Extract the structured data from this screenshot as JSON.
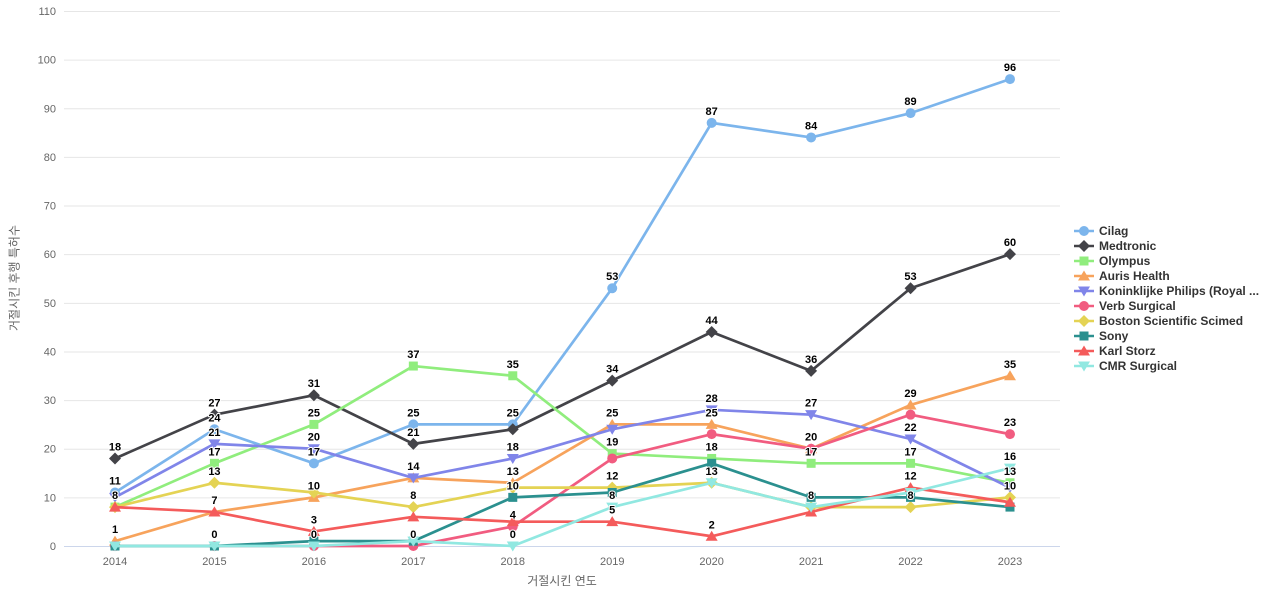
{
  "chart_data": {
    "type": "line",
    "xlabel": "거절시킨 연도",
    "ylabel": "거절시킨 후행 특허수",
    "categories": [
      "2014",
      "2015",
      "2016",
      "2017",
      "2018",
      "2019",
      "2020",
      "2021",
      "2022",
      "2023"
    ],
    "yticks": [
      0,
      10,
      20,
      30,
      40,
      50,
      60,
      70,
      80,
      90,
      100,
      110
    ],
    "ylim": [
      0,
      110
    ],
    "grid": true,
    "legend_position": "right",
    "grid_color": "#e6e6e6",
    "baseline_color": "#ccd6eb",
    "series": [
      {
        "name": "Cilag",
        "color": "#7cb5ec",
        "marker": "circle",
        "values": [
          11,
          24,
          17,
          25,
          25,
          53,
          87,
          84,
          89,
          96
        ],
        "labels": [
          11,
          24,
          17,
          25,
          25,
          53,
          87,
          84,
          89,
          96
        ]
      },
      {
        "name": "Medtronic",
        "color": "#434348",
        "marker": "diamond",
        "values": [
          18,
          27,
          31,
          21,
          24,
          34,
          44,
          36,
          53,
          60
        ],
        "labels": [
          18,
          27,
          31,
          21,
          null,
          34,
          44,
          36,
          53,
          60
        ]
      },
      {
        "name": "Olympus",
        "color": "#90ed7d",
        "marker": "square",
        "values": [
          8,
          17,
          25,
          37,
          35,
          19,
          18,
          17,
          17,
          13
        ],
        "labels": [
          8,
          17,
          25,
          37,
          35,
          19,
          18,
          17,
          17,
          13
        ]
      },
      {
        "name": "Auris Health",
        "color": "#f7a35c",
        "marker": "triangle",
        "values": [
          1,
          7,
          10,
          14,
          13,
          25,
          25,
          20,
          29,
          35
        ],
        "labels": [
          1,
          null,
          10,
          null,
          13,
          25,
          25,
          null,
          29,
          35
        ]
      },
      {
        "name": "Koninklijke Philips (Royal ...",
        "color": "#8085e9",
        "marker": "triangle-down",
        "values": [
          10,
          21,
          20,
          14,
          18,
          24,
          28,
          27,
          22,
          12
        ],
        "labels": [
          null,
          21,
          20,
          14,
          18,
          null,
          28,
          27,
          22,
          null
        ]
      },
      {
        "name": "Verb Surgical",
        "color": "#f15c80",
        "marker": "circle",
        "values": [
          0,
          0,
          0,
          0,
          4,
          18,
          23,
          20,
          27,
          23
        ],
        "labels": [
          null,
          null,
          0,
          0,
          4,
          null,
          null,
          20,
          null,
          23
        ]
      },
      {
        "name": "Boston Scientific Scimed",
        "color": "#e4d354",
        "marker": "diamond",
        "values": [
          8,
          13,
          11,
          8,
          12,
          12,
          13,
          8,
          8,
          10
        ],
        "labels": [
          null,
          13,
          null,
          8,
          null,
          12,
          null,
          null,
          8,
          10
        ]
      },
      {
        "name": "Sony",
        "color": "#2b908f",
        "marker": "square",
        "values": [
          0,
          0,
          1,
          1,
          10,
          11,
          17,
          10,
          10,
          8
        ],
        "labels": [
          null,
          0,
          null,
          null,
          10,
          null,
          null,
          null,
          null,
          null
        ]
      },
      {
        "name": "Karl Storz",
        "color": "#f45b5b",
        "marker": "triangle",
        "values": [
          8,
          7,
          3,
          6,
          5,
          5,
          2,
          7,
          12,
          9
        ],
        "labels": [
          null,
          7,
          3,
          null,
          null,
          5,
          2,
          null,
          12,
          null
        ]
      },
      {
        "name": "CMR Surgical",
        "color": "#91e8e1",
        "marker": "triangle-down",
        "values": [
          0,
          0,
          0,
          1,
          0,
          8,
          13,
          8,
          11,
          16
        ],
        "labels": [
          null,
          null,
          null,
          null,
          0,
          8,
          13,
          8,
          null,
          16
        ]
      }
    ]
  }
}
